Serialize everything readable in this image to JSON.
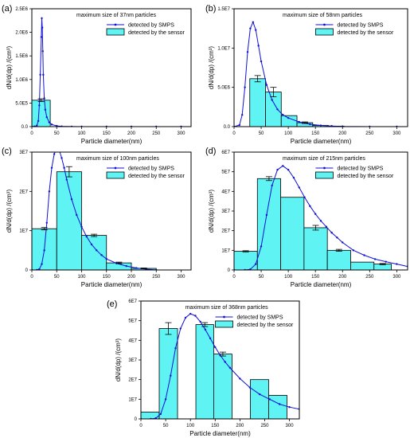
{
  "chart_data": [
    {
      "panel_label": "(a)",
      "type": "bar",
      "title": "maximum size of 37nm particles",
      "xlabel": "Particle diameter(nm)",
      "ylabel": "dN/d(dp) /(cm³)",
      "xlim": [
        0,
        320
      ],
      "ylim": [
        0,
        2500000
      ],
      "xticks": [
        0,
        50,
        100,
        150,
        200,
        250,
        300
      ],
      "yticks": [
        0,
        500000,
        1000000,
        1500000,
        2000000,
        2500000
      ],
      "ytick_labels": [
        "0.0",
        "5.0E5",
        "1.0E6",
        "1.5E6",
        "2.0E6",
        "2.5E6"
      ],
      "legend": {
        "position": "top-right",
        "line_label": "detected by SMPS",
        "bar_label": "detected by the sensor"
      },
      "bars": [
        {
          "x0": 0,
          "x1": 37,
          "value": 560000,
          "error": 30000
        }
      ],
      "smps_curve": {
        "name": "detected by SMPS",
        "x": [
          0,
          5,
          10,
          13,
          15,
          17,
          19,
          20,
          21,
          22,
          23,
          25,
          27,
          30,
          35,
          40,
          50,
          60,
          80,
          100,
          150,
          200,
          250,
          300
        ],
        "y": [
          0,
          3000,
          20000,
          120000,
          450000,
          1100000,
          1900000,
          2300000,
          2100000,
          1600000,
          1100000,
          600000,
          360000,
          200000,
          90000,
          45000,
          15000,
          6000,
          1500,
          500,
          0,
          0,
          0,
          0
        ]
      }
    },
    {
      "panel_label": "(b)",
      "type": "bar",
      "title": "maximum size of 58nm particles",
      "xlabel": "Particle diameter(nm)",
      "ylabel": "dN/d(dp) /(cm³)",
      "xlim": [
        0,
        320
      ],
      "ylim": [
        0,
        15000000
      ],
      "xticks": [
        0,
        50,
        100,
        150,
        200,
        250,
        300
      ],
      "yticks": [
        0,
        5000000,
        10000000,
        15000000
      ],
      "ytick_labels": [
        "0.0",
        "5.0E6",
        "1.0E7",
        "1.5E7"
      ],
      "legend": {
        "position": "top-right",
        "line_label": "detected by SMPS",
        "bar_label": "detected by the sensor"
      },
      "bars": [
        {
          "x0": 0,
          "x1": 29,
          "value": 0,
          "error": 0
        },
        {
          "x0": 29,
          "x1": 58,
          "value": 6100000,
          "error": 400000
        },
        {
          "x0": 58,
          "x1": 87,
          "value": 4400000,
          "error": 600000
        },
        {
          "x0": 87,
          "x1": 116,
          "value": 1400000,
          "error": 0
        },
        {
          "x0": 116,
          "x1": 145,
          "value": 500000,
          "error": 100000
        },
        {
          "x0": 145,
          "x1": 174,
          "value": 150000,
          "error": 0
        },
        {
          "x0": 174,
          "x1": 203,
          "value": 50000,
          "error": 0
        }
      ],
      "smps_curve": {
        "name": "detected by SMPS",
        "x": [
          0,
          10,
          15,
          20,
          25,
          30,
          35,
          40,
          45,
          50,
          60,
          70,
          80,
          90,
          100,
          120,
          140,
          160,
          180,
          200,
          250,
          300
        ],
        "y": [
          0,
          200000,
          1500000,
          5000000,
          9500000,
          12500000,
          13300000,
          12300000,
          10300000,
          8300000,
          5300000,
          3400000,
          2200000,
          1500000,
          1100000,
          600000,
          300000,
          150000,
          80000,
          30000,
          0,
          0
        ]
      }
    },
    {
      "panel_label": "(c)",
      "type": "bar",
      "title": "maximum size of 100nm particles",
      "xlabel": "Particle diameter(nm)",
      "ylabel": "dN/d(dp) /(cm³)",
      "xlim": [
        0,
        320
      ],
      "ylim": [
        0,
        30000000
      ],
      "xticks": [
        0,
        50,
        100,
        150,
        200,
        250,
        300
      ],
      "yticks": [
        0,
        10000000,
        20000000,
        30000000
      ],
      "ytick_labels": [
        "0",
        "1E7",
        "2E7",
        "3E7"
      ],
      "legend": {
        "position": "top-right",
        "line_label": "detected by SMPS",
        "bar_label": "detected by the sensor"
      },
      "bars": [
        {
          "x0": 0,
          "x1": 50,
          "value": 10500000,
          "error": 300000
        },
        {
          "x0": 50,
          "x1": 100,
          "value": 25000000,
          "error": 1300000
        },
        {
          "x0": 100,
          "x1": 150,
          "value": 8800000,
          "error": 300000
        },
        {
          "x0": 150,
          "x1": 200,
          "value": 1800000,
          "error": 200000
        },
        {
          "x0": 200,
          "x1": 250,
          "value": 400000,
          "error": 100000
        }
      ],
      "smps_curve": {
        "name": "detected by SMPS",
        "x": [
          0,
          10,
          15,
          20,
          25,
          30,
          35,
          40,
          45,
          50,
          55,
          60,
          65,
          70,
          80,
          90,
          100,
          110,
          120,
          130,
          140,
          150,
          170,
          190,
          210,
          230,
          250
        ],
        "y": [
          0,
          0,
          200000,
          1500000,
          5000000,
          12000000,
          20000000,
          26000000,
          29500000,
          31000000,
          30500000,
          28500000,
          26000000,
          23000000,
          18000000,
          14000000,
          11000000,
          8500000,
          6500000,
          5000000,
          3800000,
          2800000,
          1700000,
          1000000,
          500000,
          200000,
          0
        ]
      }
    },
    {
      "panel_label": "(d)",
      "type": "bar",
      "title": "maximum size of 215nm particles",
      "xlabel": "Particle diameter(nm)",
      "ylabel": "dN/d(dp) /(cm³)",
      "xlim": [
        0,
        320
      ],
      "ylim": [
        0,
        60000000
      ],
      "xticks": [
        0,
        50,
        100,
        150,
        200,
        250,
        300
      ],
      "yticks": [
        0,
        10000000,
        20000000,
        30000000,
        40000000,
        50000000,
        60000000
      ],
      "ytick_labels": [
        "0",
        "1E7",
        "2E7",
        "3E7",
        "4E7",
        "5E7",
        "6E7"
      ],
      "legend": {
        "position": "top-right",
        "line_label": "detected by SMPS",
        "bar_label": "detected by the sensor"
      },
      "bars": [
        {
          "x0": 0,
          "x1": 43,
          "value": 9500000,
          "error": 300000
        },
        {
          "x0": 43,
          "x1": 86,
          "value": 46500000,
          "error": 1000000
        },
        {
          "x0": 86,
          "x1": 129,
          "value": 37000000,
          "error": 0
        },
        {
          "x0": 129,
          "x1": 172,
          "value": 21500000,
          "error": 1200000
        },
        {
          "x0": 172,
          "x1": 215,
          "value": 10000000,
          "error": 500000
        },
        {
          "x0": 215,
          "x1": 258,
          "value": 4000000,
          "error": 0
        },
        {
          "x0": 258,
          "x1": 290,
          "value": 3000000,
          "error": 300000
        }
      ],
      "smps_curve": {
        "name": "detected by SMPS",
        "x": [
          0,
          20,
          30,
          40,
          50,
          60,
          70,
          80,
          90,
          100,
          110,
          120,
          130,
          140,
          150,
          160,
          170,
          180,
          190,
          200,
          220,
          240,
          260,
          280,
          300,
          320
        ],
        "y": [
          0,
          0,
          300000,
          3000000,
          12000000,
          28000000,
          43000000,
          51000000,
          53000000,
          51000000,
          47000000,
          42000000,
          37000000,
          32500000,
          28500000,
          25000000,
          22000000,
          19000000,
          16500000,
          14000000,
          10000000,
          7500000,
          5500000,
          4200000,
          3000000,
          1800000
        ]
      }
    },
    {
      "panel_label": "(e)",
      "type": "bar",
      "title": "maximum size of 368nm particles",
      "xlabel": "Particle diameter(nm)",
      "ylabel": "dN/d(dp) /(cm³)",
      "xlim": [
        0,
        320
      ],
      "ylim": [
        0,
        60000000
      ],
      "xticks": [
        0,
        50,
        100,
        150,
        200,
        250,
        300
      ],
      "yticks": [
        0,
        10000000,
        20000000,
        30000000,
        40000000,
        50000000,
        60000000
      ],
      "ytick_labels": [
        "0",
        "1E7",
        "2E7",
        "3E7",
        "4E7",
        "5E7",
        "6E7"
      ],
      "legend": {
        "position": "top-right",
        "line_label": "detected by SMPS",
        "bar_label": "detected by the sensor"
      },
      "bars": [
        {
          "x0": 0,
          "x1": 37,
          "value": 3500000,
          "error": 0
        },
        {
          "x0": 37,
          "x1": 74,
          "value": 46000000,
          "error": 3000000
        },
        {
          "x0": 74,
          "x1": 111,
          "value": 0,
          "error": 0
        },
        {
          "x0": 111,
          "x1": 147,
          "value": 48000000,
          "error": 1000000
        },
        {
          "x0": 147,
          "x1": 184,
          "value": 33000000,
          "error": 1000000
        },
        {
          "x0": 184,
          "x1": 221,
          "value": 0,
          "error": 0
        },
        {
          "x0": 221,
          "x1": 258,
          "value": 20000000,
          "error": 0
        },
        {
          "x0": 258,
          "x1": 295,
          "value": 12000000,
          "error": 0
        }
      ],
      "smps_curve": {
        "name": "detected by SMPS",
        "x": [
          0,
          20,
          30,
          40,
          50,
          60,
          70,
          80,
          90,
          100,
          110,
          120,
          130,
          140,
          150,
          160,
          170,
          180,
          200,
          220,
          240,
          260,
          280,
          300,
          320
        ],
        "y": [
          0,
          0,
          300000,
          2500000,
          10000000,
          22000000,
          36000000,
          46000000,
          51500000,
          53500000,
          52500000,
          49500000,
          45500000,
          41000000,
          36500000,
          32500000,
          29000000,
          26000000,
          20500000,
          16000000,
          12500000,
          10000000,
          7500000,
          6000000,
          5000000
        ]
      }
    }
  ]
}
